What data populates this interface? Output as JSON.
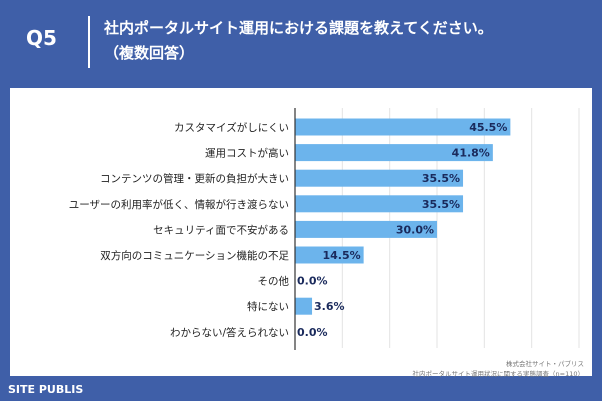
{
  "header": {
    "question_number": "Q5",
    "title_line1": "社内ポータルサイト運用における課題を教えてください。",
    "title_line2": "（複数回答）"
  },
  "footer": {
    "brand": "SITE PUBLIS",
    "source_line1": "株式会社サイト・パブリス",
    "source_line2": "社内ポータルサイト運用状況に関する実態調査（n=110）"
  },
  "colors": {
    "header_bg": "#3f5fa8",
    "bar": "#6cb4ec",
    "panel_bg": "#ffffff"
  },
  "chart_data": {
    "type": "bar",
    "orientation": "horizontal",
    "title": "",
    "xlabel": "",
    "ylabel": "",
    "xlim": [
      0,
      60
    ],
    "categories": [
      "カスタマイズがしにくい",
      "運用コストが高い",
      "コンテンツの管理・更新の負担が大きい",
      "ユーザーの利用率が低く、情報が行き渡らない",
      "セキュリティ面で不安がある",
      "双方向のコミュニケーション機能の不足",
      "その他",
      "特にない",
      "わからない/答えられない"
    ],
    "values": [
      45.5,
      41.8,
      35.5,
      35.5,
      30.0,
      14.5,
      0.0,
      3.6,
      0.0
    ],
    "value_labels": [
      "45.5%",
      "41.8%",
      "35.5%",
      "35.5%",
      "30.0%",
      "14.5%",
      "0.0%",
      "3.6%",
      "0.0%"
    ]
  }
}
